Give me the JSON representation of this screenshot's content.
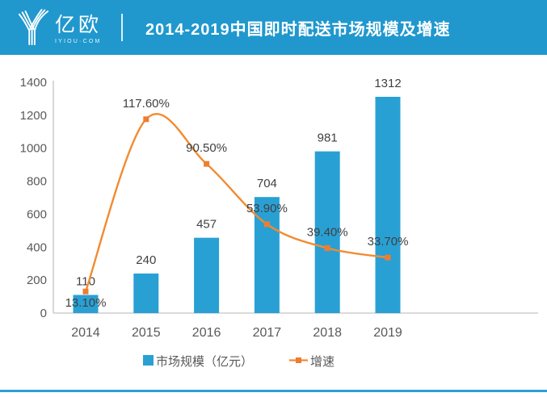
{
  "header": {
    "brand": "亿欧",
    "brand_sub": "IYIOU·COM",
    "title": "2014-2019中国即时配送市场规模及增速"
  },
  "colors": {
    "header_bg": "#2098CE",
    "bar": "#29A0D4",
    "line": "#F28B30",
    "marker": "#ED7D31",
    "axis": "#C3C3C3",
    "axis_text": "#595959",
    "data_label": "#404040",
    "bottom_accent": "#2B9FD4"
  },
  "chart_data": {
    "type": "combo",
    "title": "2014-2019中国即时配送市场规模及增速",
    "categories": [
      "2014",
      "2015",
      "2016",
      "2017",
      "2018",
      "2019"
    ],
    "series": [
      {
        "name": "市场规模（亿元）",
        "type": "bar",
        "values": [
          110,
          240,
          457,
          704,
          981,
          1312
        ],
        "labels": [
          "110",
          "240",
          "457",
          "704",
          "981",
          "1312"
        ]
      },
      {
        "name": "增速",
        "type": "line",
        "values_percent": [
          13.1,
          117.6,
          90.5,
          53.9,
          39.4,
          33.7
        ],
        "labels": [
          "13.10%",
          "117.60%",
          "90.50%",
          "53.90%",
          "39.40%",
          "33.70%"
        ]
      }
    ],
    "y_axis": {
      "min": 0,
      "max": 1400,
      "ticks": [
        0,
        200,
        400,
        600,
        800,
        1000,
        1200,
        1400
      ]
    },
    "grid": false,
    "legend_position": "bottom",
    "legend": [
      "市场规模（亿元）",
      "增速"
    ]
  }
}
